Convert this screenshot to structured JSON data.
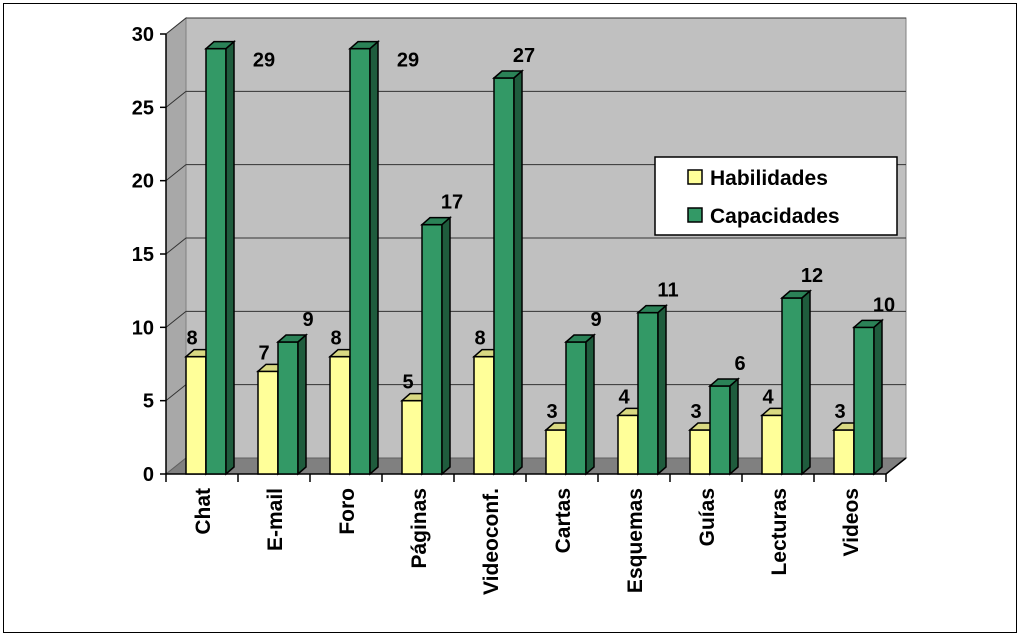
{
  "chart_data": {
    "type": "bar",
    "categories": [
      "Chat",
      "E-mail",
      "Foro",
      "Páginas",
      "Videoconf.",
      "Cartas",
      "Esquemas",
      "Guías",
      "Lecturas",
      "Videos"
    ],
    "series": [
      {
        "name": "Habilidades",
        "values": [
          8,
          7,
          8,
          5,
          8,
          3,
          4,
          3,
          4,
          3
        ],
        "color": "#ffff99"
      },
      {
        "name": "Capacidades",
        "values": [
          29,
          9,
          29,
          17,
          27,
          9,
          11,
          6,
          12,
          10
        ],
        "color": "#339966"
      }
    ],
    "ylim": [
      0,
      30
    ],
    "yticks": [
      0,
      5,
      10,
      15,
      20,
      25,
      30
    ],
    "grid": true,
    "legend_position": "right",
    "title": "",
    "xlabel": "",
    "ylabel": ""
  }
}
